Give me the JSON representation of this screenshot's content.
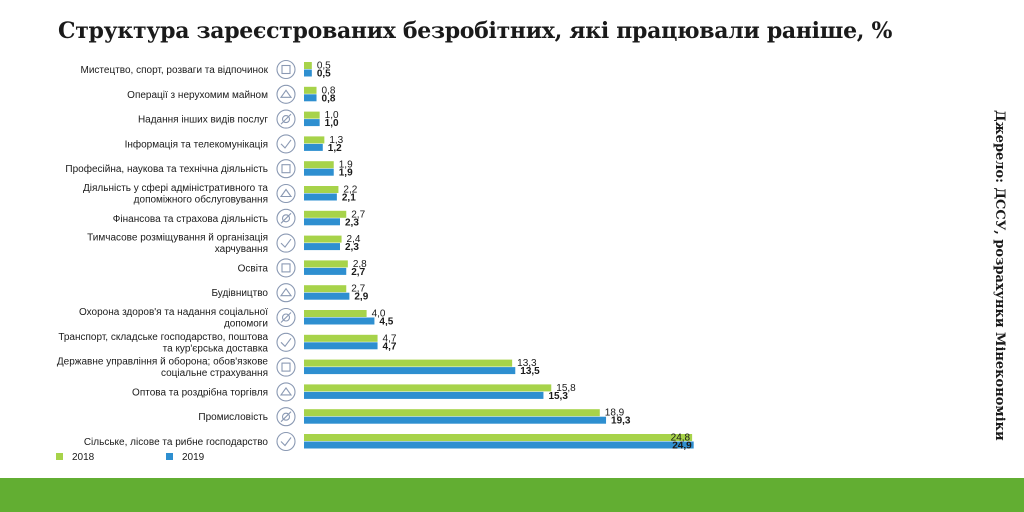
{
  "title": "Структура зареєстрованих безробітних, які працювали раніше, %",
  "source": "Джерело: ДССУ, розрахунки Мінекономіки",
  "colors": {
    "series_2018": "#a7d34a",
    "series_2019": "#2e8fd0",
    "footer": "#62ae32"
  },
  "chart_data": {
    "type": "bar",
    "orientation": "horizontal",
    "categories": [
      [
        "Мистецтво, спорт, розваги та відпочинок"
      ],
      [
        "Операції з нерухомим майном"
      ],
      [
        "Надання інших видів послуг"
      ],
      [
        "Інформація та телекомунікація"
      ],
      [
        "Професійна, наукова та технічна діяльність"
      ],
      [
        "Діяльність у сфері адміністративного та",
        "допоміжного обслуговування"
      ],
      [
        "Фінансова та страхова діяльність"
      ],
      [
        "Тимчасове розміщування й організація",
        "харчування"
      ],
      [
        "Освіта"
      ],
      [
        "Будівництво"
      ],
      [
        "Охорона здоров'я та надання соціальної",
        "допомоги"
      ],
      [
        "Транспорт, складське господарство, поштова",
        "та кур'єрська доставка"
      ],
      [
        "Державне управління й оборона; обов'язкове",
        "соціальне страхування"
      ],
      [
        "Оптова та роздрібна торгівля"
      ],
      [
        "Промисловість"
      ],
      [
        "Сільське, лісове та рибне господарство"
      ]
    ],
    "icons": [
      "theater-icon",
      "real-estate-icon",
      "services-icon",
      "telecom-icon",
      "science-icon",
      "admin-icon",
      "finance-icon",
      "catering-icon",
      "education-icon",
      "construction-icon",
      "healthcare-icon",
      "transport-icon",
      "government-icon",
      "trade-icon",
      "industry-icon",
      "agriculture-icon"
    ],
    "series": [
      {
        "name": "2018",
        "values": [
          "0.5",
          "0.8",
          "1.0",
          "1.3",
          "1.9",
          "2.2",
          "2.7",
          "2.4",
          "2.8",
          "2.7",
          "4.0",
          "4.7",
          "13.3",
          "15.8",
          "18.9",
          "24.8"
        ]
      },
      {
        "name": "2019",
        "values": [
          "0.5",
          "0.8",
          "1.0",
          "1.2",
          "1.9",
          "2.1",
          "2.3",
          "2.3",
          "2.7",
          "2.9",
          "4.5",
          "4.7",
          "13.5",
          "15.3",
          "19.3",
          "24.9"
        ]
      }
    ],
    "value_labels_format": "comma_decimal",
    "xlim": [
      0,
      25
    ],
    "legend": "bottom-left",
    "grid": false
  }
}
